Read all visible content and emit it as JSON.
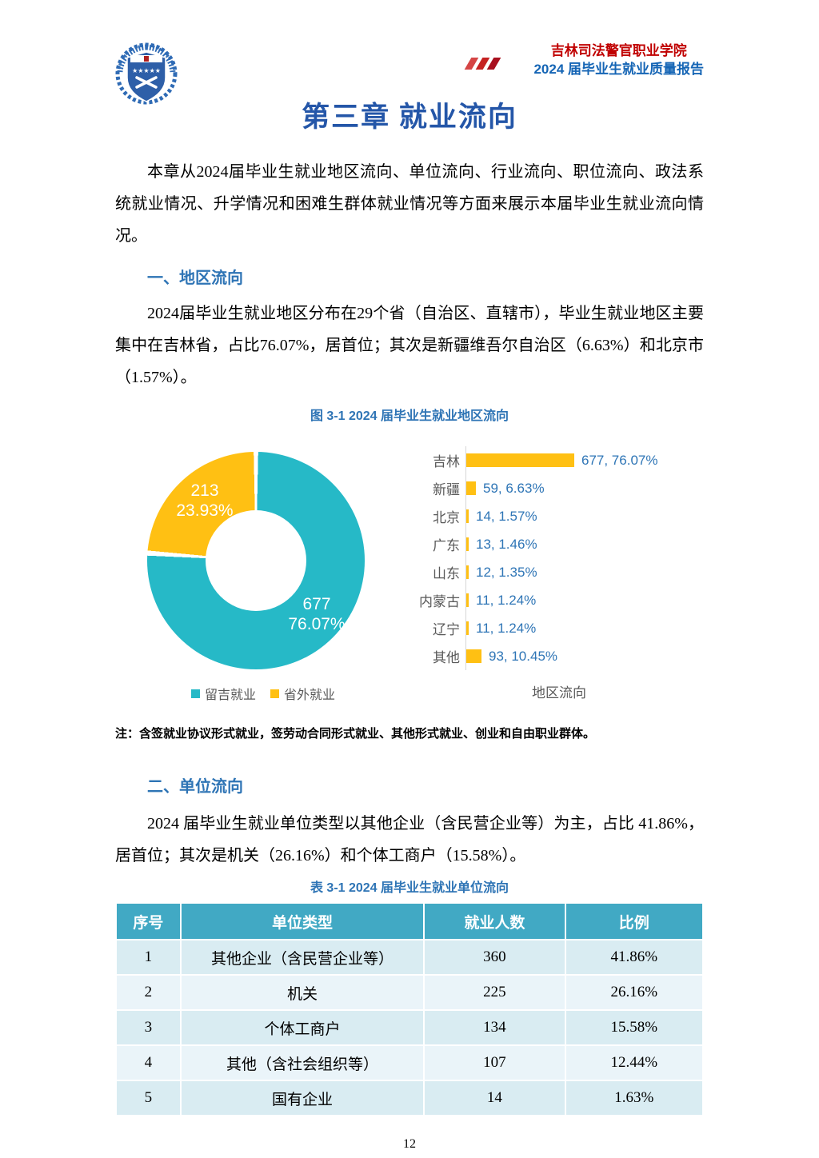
{
  "header": {
    "school_name": "吉林司法警官职业学院",
    "report_title": "2024 届毕业生就业质量报告",
    "school_name_color": "#C00000",
    "report_title_color": "#1565B5",
    "slash_colors": [
      "#D54545",
      "#C52222",
      "#A8101E"
    ]
  },
  "chapter_title": "第三章  就业流向",
  "sections": {
    "region_heading": "一、地区流向",
    "unit_heading": "二、单位流向"
  },
  "paragraphs": {
    "intro": "本章从2024届毕业生就业地区流向、单位流向、行业流向、职位流向、政法系统就业情况、升学情况和困难生群体就业情况等方面来展示本届毕业生就业流向情况。",
    "region": "2024届毕业生就业地区分布在29个省（自治区、直辖市），毕业生就业地区主要集中在吉林省，占比76.07%，居首位；其次是新疆维吾尔自治区（6.63%）和北京市（1.57%）。",
    "unit": "2024 届毕业生就业单位类型以其他企业（含民营企业等）为主，占比 41.86%，居首位；其次是机关（26.16%）和个体工商户（15.58%）。"
  },
  "figure": {
    "caption": "图 3-1 2024 届毕业生就业地区流向",
    "note": "注：含签就业协议形式就业，签劳动合同形式就业、其他形式就业、创业和自由职业群体。"
  },
  "chart_data": [
    {
      "type": "pie",
      "subtype": "donut",
      "title": "图 3-1 2024 届毕业生就业地区流向",
      "slices": [
        {
          "name": "留吉就业",
          "value": 677,
          "pct": "76.07%",
          "color": "#26B9C7"
        },
        {
          "name": "省外就业",
          "value": 213,
          "pct": "23.93%",
          "color": "#FFC013"
        }
      ],
      "legend_position": "bottom"
    },
    {
      "type": "bar",
      "orientation": "horizontal",
      "categories": [
        "吉林",
        "新疆",
        "北京",
        "广东",
        "山东",
        "内蒙古",
        "辽宁",
        "其他"
      ],
      "values": [
        677,
        59,
        14,
        13,
        12,
        11,
        11,
        93
      ],
      "value_labels": [
        "677, 76.07%",
        "59, 6.63%",
        "14, 1.57%",
        "13, 1.46%",
        "12, 1.35%",
        "11, 1.24%",
        "11, 1.24%",
        "93, 10.45%"
      ],
      "xlabel": "地区流向",
      "bar_color": "#FFC013",
      "value_label_color": "#2E75B6",
      "category_color": "#595959"
    }
  ],
  "table": {
    "caption": "表 3-1 2024 届毕业生就业单位流向",
    "headers": [
      "序号",
      "单位类型",
      "就业人数",
      "比例"
    ],
    "rows": [
      [
        "1",
        "其他企业（含民营企业等）",
        "360",
        "41.86%"
      ],
      [
        "2",
        "机关",
        "225",
        "26.16%"
      ],
      [
        "3",
        "个体工商户",
        "134",
        "15.58%"
      ],
      [
        "4",
        "其他（含社会组织等）",
        "107",
        "12.44%"
      ],
      [
        "5",
        "国有企业",
        "14",
        "1.63%"
      ]
    ],
    "header_bg": "#41A9C4",
    "row_bg_odd": "#D9ECF2",
    "row_bg_even": "#EAF4F9"
  },
  "page_number": "12"
}
